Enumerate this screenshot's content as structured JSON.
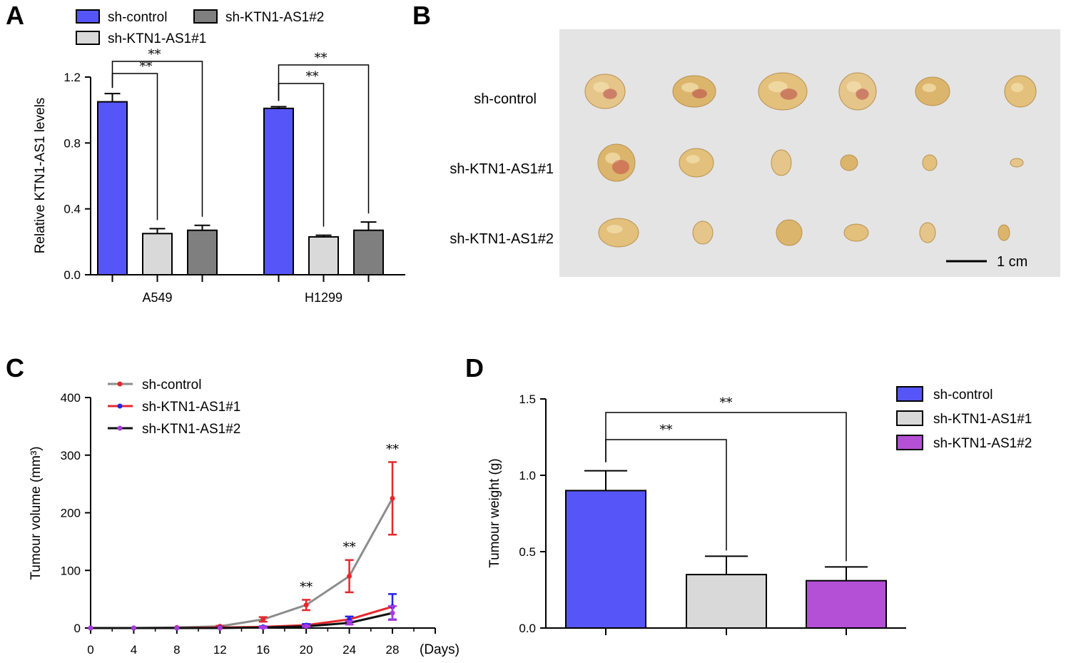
{
  "colors": {
    "blue": "#5656f8",
    "light_gray": "#d9d9d9",
    "dark_gray": "#7f7f7f",
    "purple": "#b450d6",
    "line_gray": "#8c8c8c",
    "line_red": "#e8262b",
    "line_black": "#111111",
    "photo_bg": "#e4e4e4",
    "tumour": "#e0bf78"
  },
  "panels": {
    "A": "A",
    "B": "B",
    "C": "C",
    "D": "D"
  },
  "panel_b": {
    "row_labels": [
      "sh-control",
      "sh-KTN1-AS1#1",
      "sh-KTN1-AS1#2"
    ],
    "scale_bar_label": "1 cm"
  },
  "chart_data": [
    {
      "panel": "A",
      "type": "bar",
      "categories": [
        "A549",
        "H1299"
      ],
      "series": [
        {
          "name": "sh-control",
          "values": [
            1.05,
            1.01
          ],
          "errors": [
            0.05,
            0.01
          ],
          "color": "#5656f8"
        },
        {
          "name": "sh-KTN1-AS1#1",
          "values": [
            0.25,
            0.23
          ],
          "errors": [
            0.03,
            0.01
          ],
          "color": "#d9d9d9"
        },
        {
          "name": "sh-KTN1-AS1#2",
          "values": [
            0.27,
            0.27
          ],
          "errors": [
            0.03,
            0.05
          ],
          "color": "#7f7f7f"
        }
      ],
      "xlabel": "",
      "ylabel": "Relative KTN1-AS1 levels",
      "ylim": [
        0,
        1.2
      ],
      "yticks": [
        "0.0",
        "0.4",
        "0.8",
        "1.2"
      ],
      "annotations": [
        "**",
        "**",
        "**",
        "**"
      ],
      "legend": "top"
    },
    {
      "panel": "C",
      "type": "line",
      "x": [
        0,
        4,
        8,
        12,
        16,
        20,
        24,
        28
      ],
      "xticks": [
        "0",
        "4",
        "8",
        "12",
        "16",
        "20",
        "24",
        "28"
      ],
      "x_unit": "(Days)",
      "series": [
        {
          "name": "sh-control",
          "values": [
            0,
            0,
            1,
            3,
            15,
            40,
            90,
            225
          ],
          "errors": [
            0,
            0,
            0,
            1,
            4,
            9,
            28,
            63
          ],
          "color": "#8c8c8c",
          "marker_color": "#e8262b"
        },
        {
          "name": "sh-KTN1-AS1#1",
          "values": [
            0,
            0,
            0,
            1,
            2,
            5,
            15,
            37
          ],
          "errors": [
            0,
            0,
            0,
            0,
            1,
            2,
            5,
            22
          ],
          "color": "#e8262b",
          "marker_color": "#2323ea"
        },
        {
          "name": "sh-KTN1-AS1#2",
          "values": [
            0,
            0,
            0,
            0,
            1,
            3,
            9,
            26
          ],
          "errors": [
            0,
            0,
            0,
            0,
            1,
            1,
            3,
            12
          ],
          "color": "#111111",
          "marker_color": "#a93adf"
        }
      ],
      "ylabel": "Tumour volume (mm³)",
      "ylim": [
        0,
        400
      ],
      "yticks": [
        "0",
        "100",
        "200",
        "300",
        "400"
      ],
      "annotations": [
        {
          "x": 20,
          "text": "**"
        },
        {
          "x": 24,
          "text": "**"
        },
        {
          "x": 28,
          "text": "**"
        }
      ],
      "legend": "top-left"
    },
    {
      "panel": "D",
      "type": "bar",
      "categories": [
        "sh-control",
        "sh-KTN1-AS1#1",
        "sh-KTN1-AS1#2"
      ],
      "values": [
        0.9,
        0.35,
        0.31
      ],
      "errors": [
        0.13,
        0.12,
        0.09
      ],
      "colors": [
        "#5656f8",
        "#d9d9d9",
        "#b450d6"
      ],
      "ylabel": "Tumour weight (g)",
      "ylim": [
        0,
        1.5
      ],
      "yticks": [
        "0.0",
        "0.5",
        "1.0",
        "1.5"
      ],
      "annotations": [
        "**",
        "**"
      ],
      "legend": "right"
    }
  ]
}
